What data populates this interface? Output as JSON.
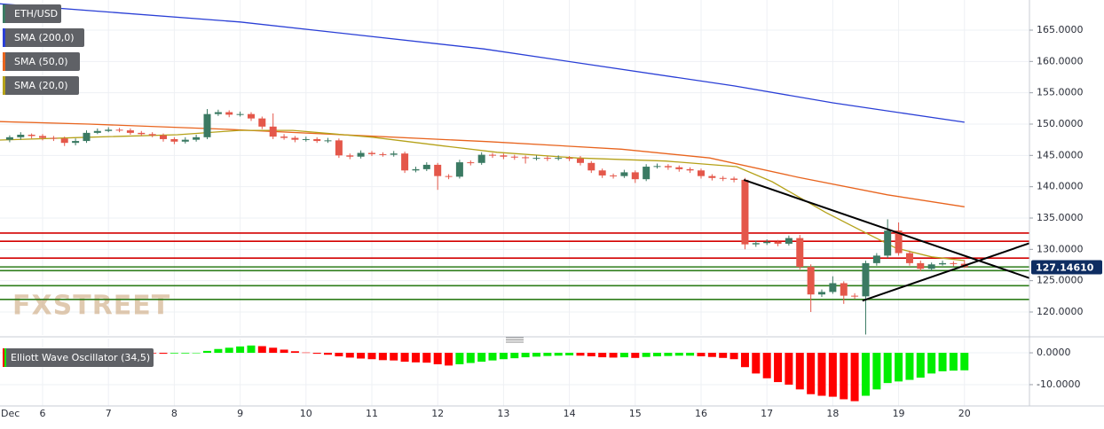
{
  "chart_data": [
    {
      "type": "candlestick",
      "name": "ETH/USD",
      "month": "Dec",
      "watermark": "FXSTREET",
      "up_color": "#3b7a63",
      "down_color": "#e4574a",
      "xlim": [
        5.353,
        20.987
      ],
      "xticks": [
        6,
        7,
        8,
        9,
        10,
        11,
        12,
        13,
        14,
        15,
        16,
        17,
        18,
        19,
        20
      ],
      "ylim": [
        116.32,
        169.81
      ],
      "yticks": [
        {
          "value": 120,
          "label": "120.0000"
        },
        {
          "value": 125,
          "label": "125.0000"
        },
        {
          "value": 130,
          "label": "130.0000"
        },
        {
          "value": 135,
          "label": "135.0000"
        },
        {
          "value": 140,
          "label": "140.0000"
        },
        {
          "value": 145,
          "label": "145.0000"
        },
        {
          "value": 150,
          "label": "150.0000"
        },
        {
          "value": 155,
          "label": "155.0000"
        },
        {
          "value": 160,
          "label": "160.0000"
        },
        {
          "value": 165,
          "label": "165.0000"
        }
      ],
      "grid": true,
      "x": [
        5.5,
        5.667,
        5.833,
        6,
        6.167,
        6.333,
        6.5,
        6.667,
        6.833,
        7,
        7.167,
        7.333,
        7.5,
        7.667,
        7.833,
        8,
        8.167,
        8.333,
        8.5,
        8.667,
        8.833,
        9,
        9.167,
        9.333,
        9.5,
        9.667,
        9.833,
        10,
        10.167,
        10.333,
        10.5,
        10.667,
        10.833,
        11,
        11.167,
        11.333,
        11.5,
        11.667,
        11.833,
        12,
        12.167,
        12.333,
        12.5,
        12.667,
        12.833,
        13,
        13.167,
        13.333,
        13.5,
        13.667,
        13.833,
        14,
        14.167,
        14.333,
        14.5,
        14.667,
        14.833,
        15,
        15.167,
        15.333,
        15.5,
        15.667,
        15.833,
        16,
        16.167,
        16.333,
        16.5,
        16.667,
        16.833,
        17,
        17.167,
        17.333,
        17.5,
        17.667,
        17.833,
        18,
        18.167,
        18.333,
        18.5,
        18.667,
        18.833,
        19,
        19.167,
        19.333,
        19.5,
        19.667,
        19.833,
        20
      ],
      "open": [
        147.5,
        147.9,
        148.3,
        148.1,
        147.8,
        147.7,
        147.0,
        147.3,
        148.6,
        148.9,
        149.1,
        149.0,
        148.6,
        148.4,
        148.2,
        147.6,
        147.2,
        147.5,
        147.9,
        151.6,
        151.9,
        151.5,
        151.6,
        150.9,
        149.6,
        148.0,
        147.8,
        147.5,
        147.6,
        147.3,
        147.4,
        145.0,
        144.8,
        145.4,
        145.2,
        145.1,
        145.3,
        142.6,
        142.8,
        143.5,
        141.7,
        141.6,
        143.9,
        143.8,
        145.1,
        145.0,
        144.8,
        144.7,
        144.6,
        144.6,
        144.5,
        144.6,
        144.5,
        143.8,
        142.6,
        141.8,
        141.7,
        142.3,
        141.2,
        143.2,
        143.3,
        143.1,
        142.8,
        142.6,
        141.7,
        141.4,
        141.3,
        141.1,
        130.8,
        131.0,
        131.2,
        130.9,
        131.8,
        127.2,
        122.8,
        123.2,
        124.6,
        122.6,
        122.5,
        127.8,
        129.0,
        133.0,
        129.4,
        127.8,
        126.9,
        127.6,
        127.8,
        127.7
      ],
      "high": [
        148.2,
        148.7,
        148.5,
        148.4,
        148.1,
        148.0,
        147.7,
        149.0,
        149.3,
        149.5,
        149.4,
        149.3,
        148.9,
        148.7,
        148.5,
        147.9,
        147.9,
        148.3,
        152.4,
        152.3,
        152.2,
        152.0,
        151.9,
        151.2,
        151.7,
        148.4,
        148.1,
        148.0,
        147.9,
        147.8,
        147.7,
        145.3,
        145.8,
        145.7,
        145.5,
        145.7,
        145.6,
        143.2,
        143.9,
        143.8,
        142.0,
        144.3,
        144.2,
        145.5,
        145.4,
        145.3,
        145.1,
        145.0,
        145.0,
        144.9,
        145.0,
        144.9,
        144.9,
        144.1,
        142.9,
        142.1,
        142.7,
        142.6,
        143.6,
        143.7,
        143.6,
        143.4,
        143.1,
        142.9,
        142.0,
        141.7,
        141.6,
        141.4,
        131.4,
        131.6,
        131.5,
        132.2,
        132.3,
        127.6,
        123.6,
        125.7,
        124.9,
        123.0,
        128.2,
        129.4,
        134.8,
        134.3,
        129.8,
        128.2,
        127.9,
        128.2,
        128.1,
        128.3
      ],
      "low": [
        147.1,
        147.5,
        147.7,
        147.4,
        147.3,
        146.5,
        146.6,
        147.0,
        148.4,
        148.7,
        148.7,
        148.3,
        148.1,
        147.9,
        147.2,
        146.8,
        146.9,
        147.2,
        147.6,
        151.3,
        151.1,
        151.2,
        150.5,
        149.2,
        147.6,
        147.5,
        147.1,
        147.2,
        147.0,
        147.0,
        144.6,
        144.4,
        144.5,
        144.9,
        144.8,
        144.8,
        142.2,
        142.3,
        142.5,
        139.5,
        141.2,
        141.3,
        143.4,
        143.5,
        144.6,
        144.4,
        144.3,
        143.7,
        144.2,
        144.1,
        144.2,
        144.1,
        143.4,
        142.2,
        141.4,
        141.3,
        141.4,
        140.6,
        140.9,
        142.9,
        142.7,
        142.4,
        142.2,
        141.3,
        141.0,
        140.9,
        140.7,
        130.0,
        130.4,
        130.7,
        130.5,
        130.6,
        126.8,
        120.0,
        122.4,
        122.9,
        121.3,
        122.1,
        116.4,
        127.4,
        128.6,
        129.0,
        127.4,
        126.5,
        126.5,
        127.4,
        127.3,
        127.0
      ],
      "close": [
        147.9,
        148.3,
        148.1,
        147.8,
        147.7,
        147.0,
        147.3,
        148.6,
        148.9,
        149.1,
        149.0,
        148.6,
        148.4,
        148.2,
        147.6,
        147.2,
        147.5,
        147.9,
        151.6,
        151.9,
        151.5,
        151.6,
        150.9,
        149.6,
        148.0,
        147.8,
        147.5,
        147.6,
        147.3,
        147.4,
        145.0,
        144.8,
        145.4,
        145.2,
        145.1,
        145.3,
        142.6,
        142.8,
        143.5,
        141.7,
        141.6,
        143.9,
        143.8,
        145.1,
        145.0,
        144.8,
        144.7,
        144.6,
        144.6,
        144.5,
        144.6,
        144.5,
        143.8,
        142.6,
        141.8,
        141.7,
        142.3,
        141.2,
        143.2,
        143.3,
        143.1,
        142.8,
        142.6,
        141.7,
        141.4,
        141.3,
        141.1,
        130.8,
        131.0,
        131.2,
        130.9,
        131.8,
        127.2,
        122.8,
        123.2,
        124.6,
        122.6,
        122.5,
        127.8,
        129.0,
        133.0,
        129.4,
        127.8,
        126.9,
        127.6,
        127.8,
        127.7,
        127.15
      ],
      "last_price": {
        "value": 127.1461,
        "label": "127.14610"
      },
      "series": [
        {
          "name": "SMA (200,0)",
          "color": "#2a3fd6",
          "x": [
            5.35,
            9,
            12.7,
            16.5,
            18,
            20
          ],
          "values": [
            169.2,
            166.3,
            162.0,
            156.1,
            153.4,
            150.3
          ]
        },
        {
          "name": "SMA (50,0)",
          "color": "#e8641e",
          "x": [
            5.35,
            6.7,
            8.72,
            10.74,
            12.77,
            14.79,
            16.13,
            17.48,
            18.83,
            20
          ],
          "values": [
            150.4,
            150.0,
            149.2,
            148.2,
            147.2,
            146.0,
            144.6,
            141.5,
            138.7,
            136.8
          ]
        },
        {
          "name": "SMA (20,0)",
          "color": "#b5a21a",
          "x": [
            5.35,
            6.7,
            8.05,
            8.99,
            9.8,
            11.01,
            12.09,
            12.9,
            14.11,
            15.46,
            16.54,
            17.08,
            17.89,
            18.43,
            18.96,
            19.5,
            20
          ],
          "values": [
            147.45,
            147.9,
            148.3,
            149.0,
            149.0,
            147.9,
            146.5,
            145.5,
            144.6,
            144.1,
            143.2,
            140.8,
            135.9,
            133.0,
            130.2,
            128.8,
            128.2
          ]
        }
      ],
      "hlines": [
        {
          "value": 132.6,
          "color": "#d40000"
        },
        {
          "value": 131.3,
          "color": "#d40000"
        },
        {
          "value": 128.6,
          "color": "#d40000"
        },
        {
          "value": 127.2,
          "color": "#2e7d1a"
        },
        {
          "value": 126.6,
          "color": "#2e7d1a"
        },
        {
          "value": 124.2,
          "color": "#2e7d1a"
        },
        {
          "value": 122.0,
          "color": "#2e7d1a"
        }
      ],
      "trendlines": [
        {
          "color": "#000000",
          "x": [
            16.65,
            20.99
          ],
          "values": [
            141.1,
            125.4
          ]
        },
        {
          "color": "#000000",
          "x": [
            18.45,
            20.99
          ],
          "values": [
            121.8,
            131.0
          ]
        }
      ]
    },
    {
      "type": "bar",
      "title": "Elliott Wave Oscillator (34,5)",
      "up_color": "#00ee00",
      "down_color": "#ff0000",
      "ylim": [
        -16.7,
        2.8
      ],
      "yticks": [
        {
          "value": 0,
          "label": "0.0000"
        },
        {
          "value": -10,
          "label": "-10.0000"
        }
      ],
      "values": [
        0.3,
        0.2,
        0.1,
        0.0,
        -0.1,
        -0.1,
        -0.1,
        0.0,
        0.1,
        0.1,
        0.0,
        -0.1,
        -0.1,
        -0.2,
        -0.3,
        -0.2,
        -0.2,
        0.0,
        0.6,
        1.2,
        1.6,
        2.0,
        2.3,
        2.1,
        1.6,
        1.0,
        0.5,
        0.1,
        -0.3,
        -0.6,
        -1.1,
        -1.5,
        -1.8,
        -2.0,
        -2.3,
        -2.4,
        -2.8,
        -3.0,
        -3.1,
        -3.6,
        -4.0,
        -3.6,
        -3.2,
        -2.8,
        -2.4,
        -2.0,
        -1.7,
        -1.4,
        -1.2,
        -1.0,
        -0.9,
        -0.8,
        -0.9,
        -1.1,
        -1.4,
        -1.5,
        -1.4,
        -1.6,
        -1.3,
        -1.1,
        -1.0,
        -0.9,
        -0.9,
        -1.1,
        -1.3,
        -1.6,
        -2.0,
        -4.5,
        -6.5,
        -8.0,
        -9.2,
        -10.0,
        -11.5,
        -13.0,
        -13.5,
        -13.8,
        -14.6,
        -15.2,
        -13.5,
        -11.5,
        -9.5,
        -9.0,
        -8.5,
        -7.8,
        -6.5,
        -5.8,
        -5.6,
        -5.5
      ]
    }
  ]
}
